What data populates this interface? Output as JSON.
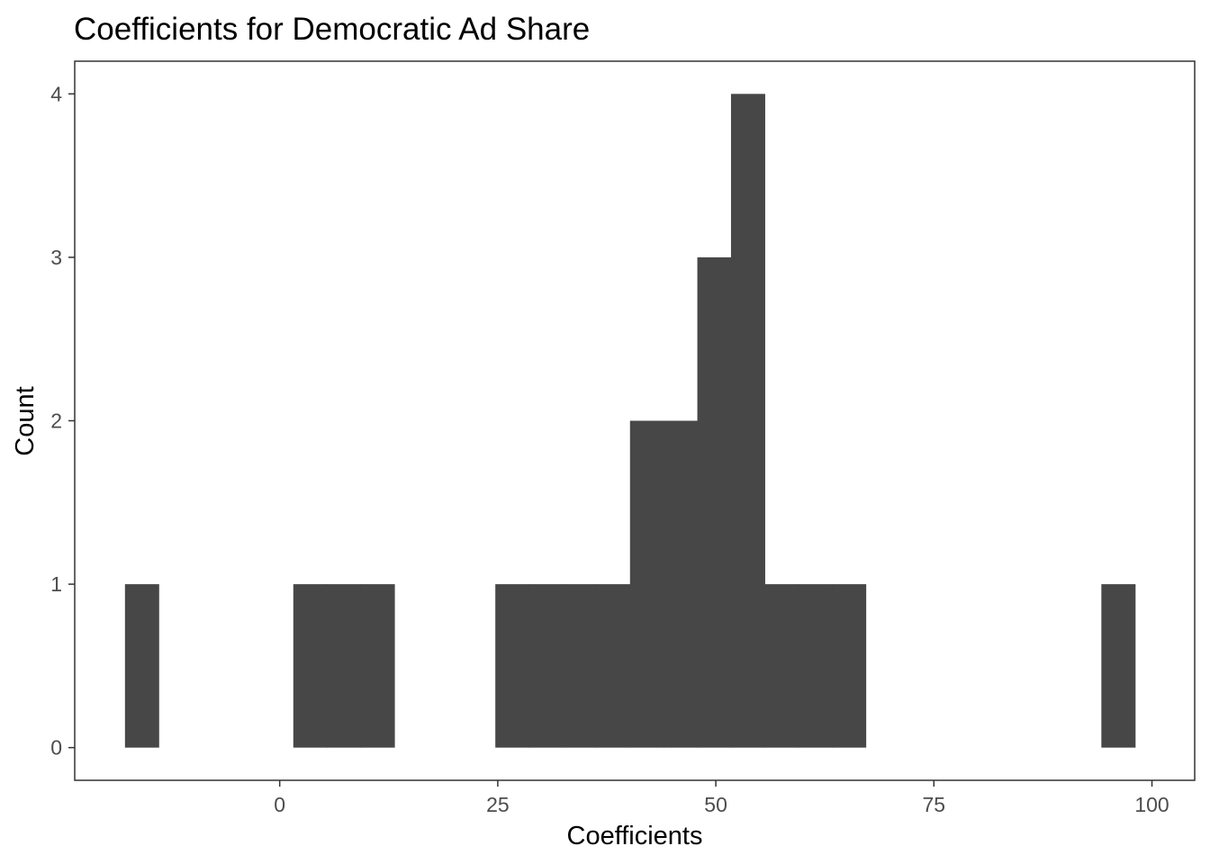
{
  "chart_data": {
    "type": "bar",
    "title": "Coefficients for Democratic Ad Share",
    "xlabel": "Coefficients",
    "ylabel": "Count",
    "xlim": [
      -23.5,
      104.9
    ],
    "ylim": [
      -0.2,
      4.2
    ],
    "x_ticks": [
      0,
      25,
      50,
      75,
      100
    ],
    "y_ticks": [
      0,
      1,
      2,
      3,
      4
    ],
    "x_tick_labels": [
      "0",
      "25",
      "50",
      "75",
      "100"
    ],
    "y_tick_labels": [
      "0",
      "1",
      "2",
      "3",
      "4"
    ],
    "bin_width": 3.86,
    "bins": [
      {
        "x0": -17.74,
        "x1": -13.88,
        "count": 1
      },
      {
        "x0": 1.56,
        "x1": 5.42,
        "count": 1
      },
      {
        "x0": 5.42,
        "x1": 9.28,
        "count": 1
      },
      {
        "x0": 9.28,
        "x1": 13.14,
        "count": 1
      },
      {
        "x0": 24.72,
        "x1": 28.58,
        "count": 1
      },
      {
        "x0": 28.58,
        "x1": 32.44,
        "count": 1
      },
      {
        "x0": 32.44,
        "x1": 36.3,
        "count": 1
      },
      {
        "x0": 36.3,
        "x1": 40.16,
        "count": 1
      },
      {
        "x0": 40.16,
        "x1": 44.02,
        "count": 2
      },
      {
        "x0": 44.02,
        "x1": 47.88,
        "count": 2
      },
      {
        "x0": 47.88,
        "x1": 51.74,
        "count": 3
      },
      {
        "x0": 51.74,
        "x1": 55.6,
        "count": 4
      },
      {
        "x0": 55.6,
        "x1": 59.46,
        "count": 1
      },
      {
        "x0": 59.46,
        "x1": 63.32,
        "count": 1
      },
      {
        "x0": 63.32,
        "x1": 67.18,
        "count": 1
      },
      {
        "x0": 94.2,
        "x1": 98.06,
        "count": 1
      }
    ],
    "bar_color": "#474747",
    "panel_border_color": "#333333",
    "grid": false,
    "legend": "none"
  }
}
